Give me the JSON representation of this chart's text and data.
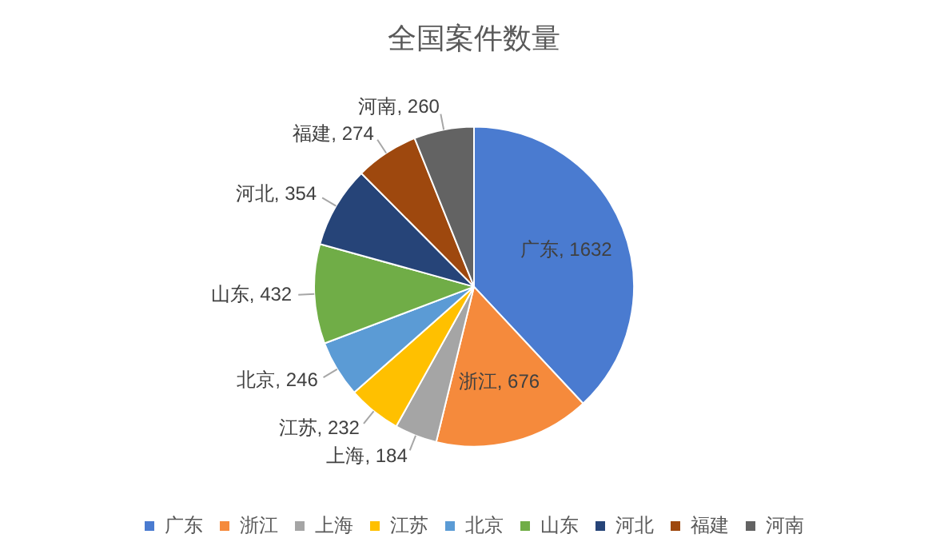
{
  "chart_data": {
    "type": "pie",
    "title": "全国案件数量",
    "categories": [
      "广东",
      "浙江",
      "上海",
      "江苏",
      "北京",
      "山东",
      "河北",
      "福建",
      "河南"
    ],
    "values": [
      1632,
      676,
      184,
      232,
      246,
      432,
      354,
      274,
      260
    ],
    "value_labels": [
      "广东, 1632",
      "浙江, 676",
      "上海, 184",
      "江苏, 232",
      "北京, 246",
      "山东, 432",
      "河北, 354",
      "福建, 274",
      "河南, 260"
    ],
    "colors": [
      "#4a7bd0",
      "#f58a3c",
      "#a5a5a5",
      "#ffc000",
      "#5b9bd5",
      "#70ad47",
      "#264478",
      "#9e480e",
      "#636363"
    ],
    "legend": "bottom"
  }
}
